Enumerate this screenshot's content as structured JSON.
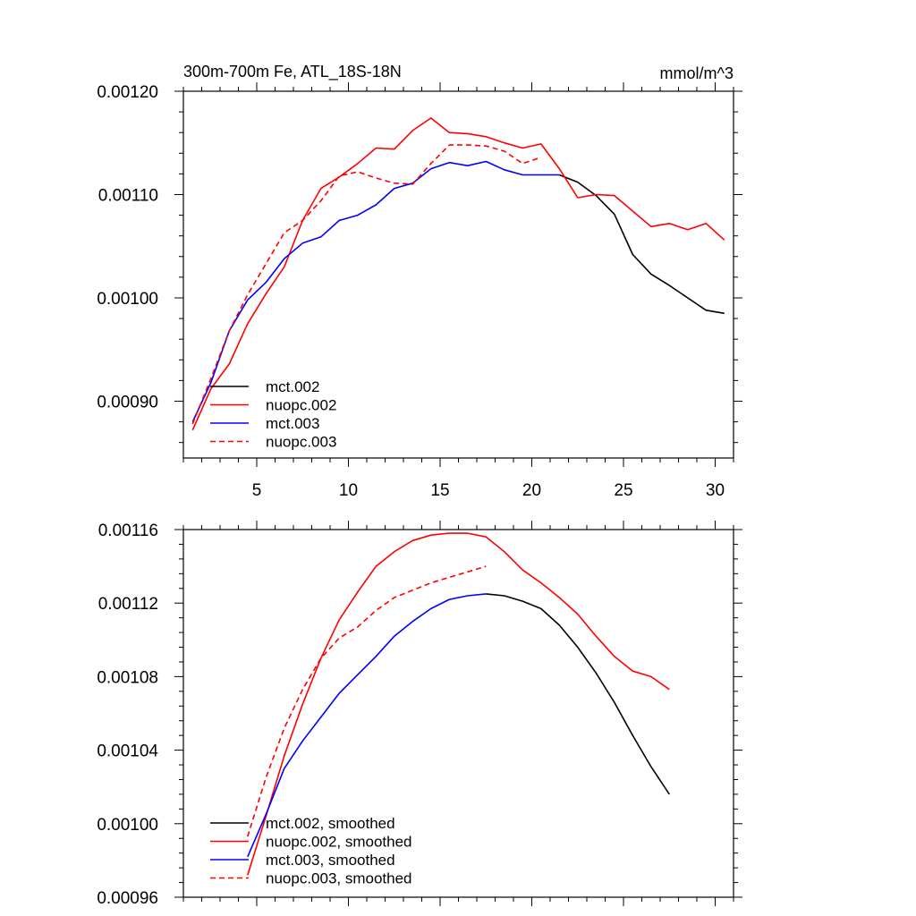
{
  "chart_data": [
    {
      "type": "line",
      "title": "300m-700m Fe, ATL_18S-18N",
      "units": "mmol/m^3",
      "xlabel": "",
      "ylabel": "",
      "xlim": [
        1,
        31
      ],
      "ylim": [
        0.000845,
        0.0012
      ],
      "xticks": [
        5,
        10,
        15,
        20,
        25,
        30
      ],
      "yticks": [
        0.0009,
        0.001,
        0.0011,
        0.0012
      ],
      "ytick_labels": [
        "0.00090",
        "0.00100",
        "0.00110",
        "0.00120"
      ],
      "legend_position": "bottom-left",
      "series": [
        {
          "name": "mct.002",
          "color": "#000000",
          "dash": "solid",
          "x": [
            21.5,
            22.5,
            23.5,
            24.5,
            25.5,
            26.5,
            27.5,
            28.5,
            29.5,
            30.5
          ],
          "y": [
            0.001119,
            0.001112,
            0.001099,
            0.001081,
            0.001042,
            0.001023,
            0.001012,
            0.001,
            0.000988,
            0.000985
          ]
        },
        {
          "name": "nuopc.002",
          "color": "#ff0000",
          "dash": "solid",
          "x": [
            1.5,
            2.5,
            3.5,
            4.5,
            5.5,
            6.5,
            7.5,
            8.5,
            9.5,
            10.5,
            11.5,
            12.5,
            13.5,
            14.5,
            15.5,
            16.5,
            17.5,
            18.5,
            19.5,
            20.5,
            21.5,
            22.5,
            23.5,
            24.5,
            25.5,
            26.5,
            27.5,
            28.5,
            29.5,
            30.5
          ],
          "y": [
            0.000872,
            0.000912,
            0.000936,
            0.000975,
            0.001004,
            0.00103,
            0.001075,
            0.001106,
            0.001117,
            0.00113,
            0.001145,
            0.001144,
            0.001162,
            0.001174,
            0.00116,
            0.001159,
            0.001156,
            0.00115,
            0.001145,
            0.001149,
            0.001125,
            0.001097,
            0.0011,
            0.001099,
            0.001084,
            0.001069,
            0.001072,
            0.001066,
            0.001072,
            0.001056
          ]
        },
        {
          "name": "mct.003",
          "color": "#0000ff",
          "dash": "solid",
          "x": [
            1.5,
            2.5,
            3.5,
            4.5,
            5.5,
            6.5,
            7.5,
            8.5,
            9.5,
            10.5,
            11.5,
            12.5,
            13.5,
            14.5,
            15.5,
            16.5,
            17.5,
            18.5,
            19.5,
            20.5,
            21.5
          ],
          "y": [
            0.00088,
            0.000918,
            0.000968,
            0.000998,
            0.001015,
            0.001038,
            0.001053,
            0.001059,
            0.001075,
            0.00108,
            0.00109,
            0.001106,
            0.001111,
            0.001125,
            0.001131,
            0.001128,
            0.001132,
            0.001124,
            0.001119,
            0.001119,
            0.001119
          ]
        },
        {
          "name": "nuopc.003",
          "color": "#ff0000",
          "dash": "dashed",
          "x": [
            1.5,
            2.5,
            3.5,
            4.5,
            5.5,
            6.5,
            7.5,
            8.5,
            9.5,
            10.5,
            11.5,
            12.5,
            13.5,
            14.5,
            15.5,
            16.5,
            17.5,
            18.5,
            19.5,
            20.5
          ],
          "y": [
            0.000878,
            0.000922,
            0.000968,
            0.001003,
            0.001033,
            0.001063,
            0.001075,
            0.001094,
            0.001118,
            0.001122,
            0.001116,
            0.001111,
            0.00111,
            0.00113,
            0.001148,
            0.001148,
            0.001147,
            0.001142,
            0.00113,
            0.001136
          ]
        }
      ]
    },
    {
      "type": "line",
      "title": "",
      "xlabel": "",
      "ylabel": "",
      "xlim": [
        1,
        31
      ],
      "ylim": [
        0.00096,
        0.00116
      ],
      "xticks": [
        5,
        10,
        15,
        20,
        25,
        30
      ],
      "yticks": [
        0.00096,
        0.001,
        0.00104,
        0.00108,
        0.00112,
        0.00116
      ],
      "ytick_labels": [
        "0.00096",
        "0.00100",
        "0.00104",
        "0.00108",
        "0.00112",
        "0.00116"
      ],
      "legend_position": "bottom-left",
      "series": [
        {
          "name": "mct.002, smoothed",
          "color": "#000000",
          "dash": "solid",
          "x": [
            17.5,
            18.5,
            19.5,
            20.5,
            21.5,
            22.5,
            23.5,
            24.5,
            25.5,
            26.5,
            27.5
          ],
          "y": [
            0.001125,
            0.001124,
            0.001121,
            0.001117,
            0.001108,
            0.001096,
            0.001082,
            0.001066,
            0.001048,
            0.001031,
            0.001016
          ]
        },
        {
          "name": "nuopc.002, smoothed",
          "color": "#ff0000",
          "dash": "solid",
          "x": [
            4.5,
            5.5,
            6.5,
            7.5,
            8.5,
            9.5,
            10.5,
            11.5,
            12.5,
            13.5,
            14.5,
            15.5,
            16.5,
            17.5,
            18.5,
            19.5,
            20.5,
            21.5,
            22.5,
            23.5,
            24.5,
            25.5,
            26.5,
            27.5
          ],
          "y": [
            0.000972,
            0.001004,
            0.001037,
            0.001065,
            0.00109,
            0.001111,
            0.001126,
            0.00114,
            0.001148,
            0.001154,
            0.001157,
            0.001158,
            0.001158,
            0.001156,
            0.001148,
            0.001138,
            0.001131,
            0.001123,
            0.001114,
            0.001102,
            0.001091,
            0.001083,
            0.00108,
            0.001073
          ]
        },
        {
          "name": "mct.003, smoothed",
          "color": "#0000ff",
          "dash": "solid",
          "x": [
            4.5,
            5.5,
            6.5,
            7.5,
            8.5,
            9.5,
            10.5,
            11.5,
            12.5,
            13.5,
            14.5,
            15.5,
            16.5,
            17.5
          ],
          "y": [
            0.000982,
            0.001005,
            0.00103,
            0.001045,
            0.001058,
            0.001071,
            0.001081,
            0.001091,
            0.001102,
            0.00111,
            0.001117,
            0.001122,
            0.001124,
            0.001125
          ]
        },
        {
          "name": "nuopc.003, smoothed",
          "color": "#ff0000",
          "dash": "dashed",
          "x": [
            4.5,
            5.5,
            6.5,
            7.5,
            8.5,
            9.5,
            10.5,
            11.5,
            12.5,
            13.5,
            14.5,
            15.5,
            16.5,
            17.5
          ],
          "y": [
            0.000993,
            0.001025,
            0.001052,
            0.001073,
            0.00109,
            0.001101,
            0.001107,
            0.001116,
            0.001123,
            0.001127,
            0.001131,
            0.001134,
            0.001137,
            0.00114
          ]
        }
      ]
    }
  ]
}
